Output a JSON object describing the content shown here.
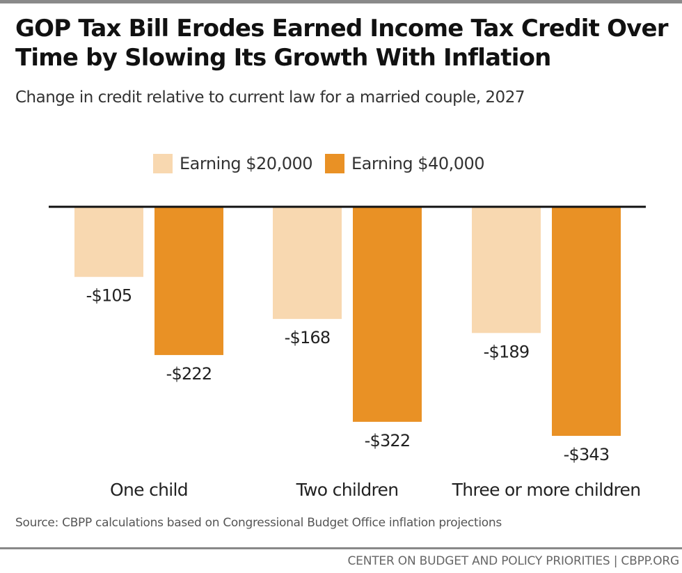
{
  "chart_data": {
    "type": "bar",
    "title": "GOP Tax Bill Erodes Earned Income Tax Credit Over Time by Slowing Its Growth With Inflation",
    "subtitle": "Change in credit relative to current law for a married couple, 2027",
    "categories": [
      "One child",
      "Two children",
      "Three or more children"
    ],
    "series": [
      {
        "name": "Earning $20,000",
        "color": "#f8d8b0",
        "values": [
          -105,
          -168,
          -189
        ],
        "labels": [
          "-$105",
          "-$168",
          "-$189"
        ]
      },
      {
        "name": "Earning $40,000",
        "color": "#e99125",
        "values": [
          -222,
          -322,
          -343
        ],
        "labels": [
          "-$222",
          "-$322",
          "-$343"
        ]
      }
    ],
    "xlabel": "",
    "ylabel": "",
    "ylim": [
      -343,
      0
    ],
    "grid": false,
    "legend_position": "top-center",
    "source": "Source: CBPP calculations based on Congressional Budget Office inflation projections",
    "organization": "CENTER ON BUDGET AND POLICY PRIORITIES | CBPP.ORG"
  }
}
